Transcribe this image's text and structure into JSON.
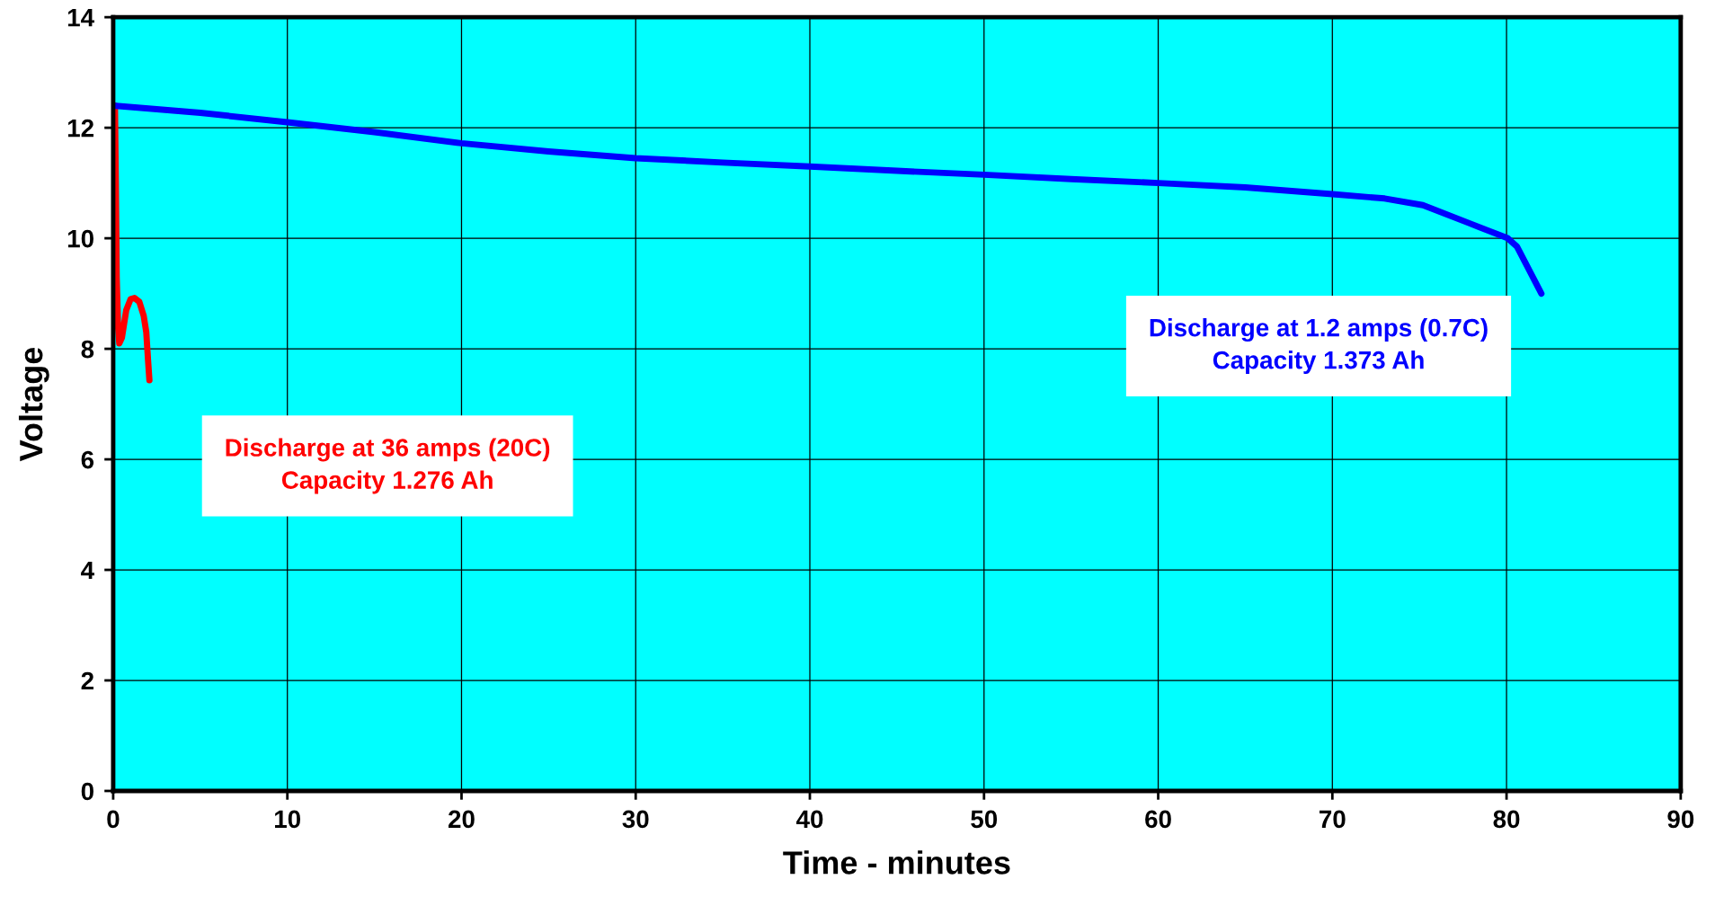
{
  "chart_data": {
    "type": "line",
    "xlabel": "Time - minutes",
    "ylabel": "Voltage",
    "xlim": [
      0,
      90
    ],
    "xticks": [
      0,
      10,
      20,
      30,
      40,
      50,
      60,
      70,
      80,
      90
    ],
    "ylim": [
      0,
      14
    ],
    "yticks": [
      0,
      2,
      4,
      6,
      8,
      10,
      12,
      14
    ],
    "grid": true,
    "marker": "none",
    "line_style": "solid",
    "legend": false,
    "series": [
      {
        "name": "Discharge at 36 amps (20C)\nCapacity 1.276 Ah",
        "color": "#ff0000",
        "x": [
          0.1,
          0.15,
          0.2,
          0.28,
          0.35,
          0.5,
          0.75,
          1.0,
          1.22,
          1.5,
          1.75,
          1.9,
          2.0,
          2.08
        ],
        "values": [
          12.4,
          11.0,
          9.3,
          8.4,
          8.1,
          8.2,
          8.7,
          8.9,
          8.92,
          8.85,
          8.6,
          8.3,
          7.8,
          7.43
        ]
      },
      {
        "name": "Discharge at 1.2 amps (0.7C)\nCapacity 1.373 Ah",
        "color": "#0000ff",
        "x": [
          0,
          5,
          10,
          15,
          20,
          25,
          30,
          35,
          40,
          45,
          50,
          55,
          60,
          65,
          70,
          73,
          75.2,
          77.8,
          80.07,
          80.6,
          82.0
        ],
        "values": [
          12.4,
          12.27,
          12.1,
          11.92,
          11.72,
          11.57,
          11.45,
          11.37,
          11.3,
          11.22,
          11.15,
          11.07,
          11.0,
          10.92,
          10.8,
          10.72,
          10.6,
          10.28,
          10.0,
          9.85,
          9.0
        ]
      }
    ]
  }
}
